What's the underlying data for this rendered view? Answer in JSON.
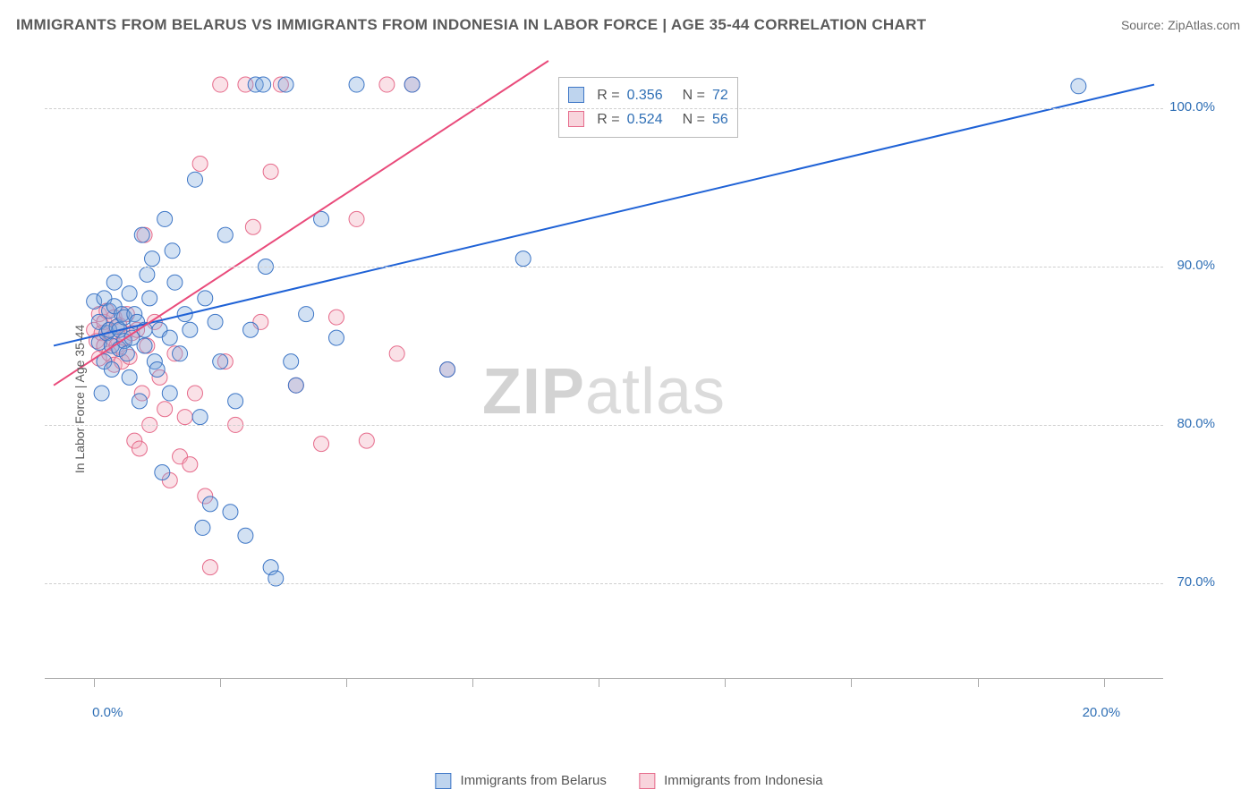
{
  "title": "IMMIGRANTS FROM BELARUS VS IMMIGRANTS FROM INDONESIA IN LABOR FORCE | AGE 35-44 CORRELATION CHART",
  "source": "Source: ZipAtlas.com",
  "y_axis_label": "In Labor Force | Age 35-44",
  "watermark_bold": "ZIP",
  "watermark_rest": "atlas",
  "chart": {
    "type": "scatter",
    "background_color": "#ffffff",
    "grid_color": "#cfcfcf",
    "text_color": "#5a5a5a",
    "tick_label_color": "#2f6fb5",
    "x_domain": [
      -0.8,
      21.0
    ],
    "y_domain": [
      64.0,
      103.0
    ],
    "x_ticks": [
      0.0,
      10.0,
      20.0
    ],
    "x_tick_labels": [
      "0.0%",
      "",
      "20.0%"
    ],
    "y_ticks": [
      70.0,
      80.0,
      90.0,
      100.0
    ],
    "y_tick_labels": [
      "70.0%",
      "80.0%",
      "90.0%",
      "100.0%"
    ],
    "marker_radius": 8.5,
    "marker_stroke_width": 1,
    "marker_fill_opacity": 0.35,
    "line_width": 2,
    "series": [
      {
        "name": "Immigrants from Belarus",
        "color_fill": "#7ea9dd",
        "color_stroke": "#3d76c6",
        "line_color": "#1f62d6",
        "r_value": "0.356",
        "n_value": "72",
        "trend": {
          "x1": -0.8,
          "y1": 85.0,
          "x2": 21.0,
          "y2": 101.5
        },
        "points": [
          [
            0.0,
            87.8
          ],
          [
            0.1,
            86.5
          ],
          [
            0.1,
            85.2
          ],
          [
            0.2,
            88.0
          ],
          [
            0.2,
            84.0
          ],
          [
            0.25,
            85.8
          ],
          [
            0.3,
            86.0
          ],
          [
            0.3,
            87.2
          ],
          [
            0.35,
            85.0
          ],
          [
            0.35,
            83.5
          ],
          [
            0.4,
            87.5
          ],
          [
            0.4,
            89.0
          ],
          [
            0.45,
            86.2
          ],
          [
            0.5,
            84.8
          ],
          [
            0.5,
            86.0
          ],
          [
            0.55,
            87.0
          ],
          [
            0.6,
            85.3
          ],
          [
            0.6,
            86.8
          ],
          [
            0.65,
            84.5
          ],
          [
            0.7,
            88.3
          ],
          [
            0.7,
            83.0
          ],
          [
            0.75,
            85.5
          ],
          [
            0.8,
            87.0
          ],
          [
            0.85,
            86.5
          ],
          [
            0.9,
            81.5
          ],
          [
            0.95,
            92.0
          ],
          [
            1.0,
            85.0
          ],
          [
            1.0,
            86.0
          ],
          [
            1.1,
            88.0
          ],
          [
            1.15,
            90.5
          ],
          [
            1.2,
            84.0
          ],
          [
            1.25,
            83.5
          ],
          [
            1.3,
            86.0
          ],
          [
            1.35,
            77.0
          ],
          [
            1.4,
            93.0
          ],
          [
            1.5,
            85.5
          ],
          [
            1.5,
            82.0
          ],
          [
            1.6,
            89.0
          ],
          [
            1.7,
            84.5
          ],
          [
            1.8,
            87.0
          ],
          [
            1.9,
            86.0
          ],
          [
            2.0,
            95.5
          ],
          [
            2.1,
            80.5
          ],
          [
            2.2,
            88.0
          ],
          [
            2.3,
            75.0
          ],
          [
            2.4,
            86.5
          ],
          [
            2.5,
            84.0
          ],
          [
            2.6,
            92.0
          ],
          [
            2.7,
            74.5
          ],
          [
            2.8,
            81.5
          ],
          [
            3.0,
            73.0
          ],
          [
            3.1,
            86.0
          ],
          [
            3.2,
            101.5
          ],
          [
            3.35,
            101.5
          ],
          [
            3.4,
            90.0
          ],
          [
            3.5,
            71.0
          ],
          [
            3.6,
            70.3
          ],
          [
            3.8,
            101.5
          ],
          [
            3.9,
            84.0
          ],
          [
            4.0,
            82.5
          ],
          [
            4.2,
            87.0
          ],
          [
            4.5,
            93.0
          ],
          [
            4.8,
            85.5
          ],
          [
            5.2,
            101.5
          ],
          [
            6.3,
            101.5
          ],
          [
            7.0,
            83.5
          ],
          [
            8.5,
            90.5
          ],
          [
            19.5,
            101.4
          ],
          [
            1.05,
            89.5
          ],
          [
            1.55,
            91.0
          ],
          [
            2.15,
            73.5
          ],
          [
            0.15,
            82.0
          ]
        ]
      },
      {
        "name": "Immigrants from Indonesia",
        "color_fill": "#f2a9ba",
        "color_stroke": "#e66b8b",
        "line_color": "#e94b7b",
        "r_value": "0.524",
        "n_value": "56",
        "trend": {
          "x1": -0.8,
          "y1": 82.5,
          "x2": 9.0,
          "y2": 103.0
        },
        "points": [
          [
            0.0,
            86.0
          ],
          [
            0.05,
            85.3
          ],
          [
            0.1,
            87.0
          ],
          [
            0.1,
            84.2
          ],
          [
            0.15,
            85.8
          ],
          [
            0.2,
            86.5
          ],
          [
            0.2,
            85.0
          ],
          [
            0.25,
            87.2
          ],
          [
            0.3,
            84.5
          ],
          [
            0.3,
            86.0
          ],
          [
            0.35,
            85.5
          ],
          [
            0.4,
            83.8
          ],
          [
            0.4,
            86.8
          ],
          [
            0.45,
            85.0
          ],
          [
            0.5,
            86.3
          ],
          [
            0.55,
            84.0
          ],
          [
            0.6,
            85.5
          ],
          [
            0.65,
            87.0
          ],
          [
            0.7,
            84.3
          ],
          [
            0.75,
            85.8
          ],
          [
            0.8,
            79.0
          ],
          [
            0.85,
            86.0
          ],
          [
            0.9,
            78.5
          ],
          [
            0.95,
            82.0
          ],
          [
            1.0,
            92.0
          ],
          [
            1.05,
            85.0
          ],
          [
            1.1,
            80.0
          ],
          [
            1.2,
            86.5
          ],
          [
            1.3,
            83.0
          ],
          [
            1.4,
            81.0
          ],
          [
            1.5,
            76.5
          ],
          [
            1.6,
            84.5
          ],
          [
            1.7,
            78.0
          ],
          [
            1.8,
            80.5
          ],
          [
            1.9,
            77.5
          ],
          [
            2.0,
            82.0
          ],
          [
            2.1,
            96.5
          ],
          [
            2.2,
            75.5
          ],
          [
            2.3,
            71.0
          ],
          [
            2.5,
            101.5
          ],
          [
            2.6,
            84.0
          ],
          [
            2.8,
            80.0
          ],
          [
            3.0,
            101.5
          ],
          [
            3.15,
            92.5
          ],
          [
            3.3,
            86.5
          ],
          [
            3.5,
            96.0
          ],
          [
            3.7,
            101.5
          ],
          [
            4.0,
            82.5
          ],
          [
            4.5,
            78.8
          ],
          [
            4.8,
            86.8
          ],
          [
            5.2,
            93.0
          ],
          [
            5.4,
            79.0
          ],
          [
            5.8,
            101.5
          ],
          [
            6.0,
            84.5
          ],
          [
            7.0,
            83.5
          ],
          [
            6.3,
            101.5
          ]
        ]
      }
    ]
  },
  "legend_top": {
    "r_label": "R =",
    "n_label": "N ="
  },
  "legend_bottom": {
    "series1": "Immigrants from Belarus",
    "series2": "Immigrants from Indonesia"
  }
}
